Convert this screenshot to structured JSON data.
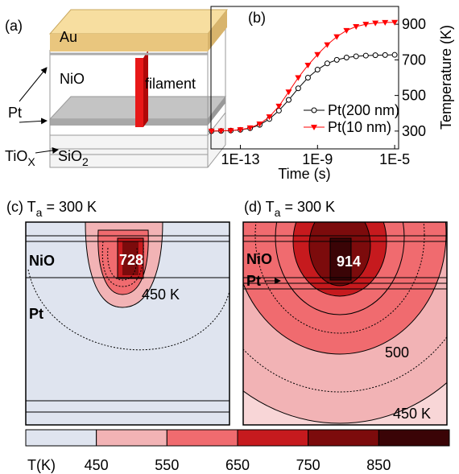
{
  "panel_a": {
    "label": "(a)",
    "au": "Au",
    "nio": "NiO",
    "pt": "Pt",
    "filament": "filament",
    "tiox": [
      "TiO",
      "X"
    ],
    "sio2": [
      "SiO",
      "2"
    ]
  },
  "chart_data": {
    "type": "line",
    "label": "(b)",
    "xlabel": "Time (s)",
    "ylabel": "Temperature (K)",
    "x": [
      3.2e-15,
      1e-14,
      3.2e-14,
      1e-13,
      3.2e-13,
      1e-12,
      3.2e-12,
      1e-11,
      3.2e-11,
      1e-10,
      3.2e-10,
      1e-09,
      3.2e-09,
      1e-08,
      3.2e-08,
      1e-07,
      3.2e-07,
      1e-06,
      3.2e-06,
      1e-05
    ],
    "series": [
      {
        "name": "Pt(200 nm)",
        "color": "#000000",
        "marker": "circle",
        "values": [
          300,
          301,
          303,
          307,
          316,
          335,
          368,
          415,
          475,
          540,
          600,
          645,
          680,
          700,
          713,
          720,
          724,
          726,
          727,
          728
        ]
      },
      {
        "name": "Pt(10 nm)",
        "color": "#ff0000",
        "marker": "triangle-down",
        "values": [
          300,
          301,
          303,
          308,
          318,
          340,
          380,
          440,
          520,
          600,
          670,
          730,
          785,
          830,
          865,
          887,
          900,
          907,
          910,
          911
        ]
      }
    ],
    "xlog": true,
    "xlim": [
      3e-15,
      1.6e-05
    ],
    "xticks": [
      {
        "value": 1e-13,
        "label": "1E-13"
      },
      {
        "value": 1e-09,
        "label": "1E-9"
      },
      {
        "value": 1e-05,
        "label": "1E-5"
      }
    ],
    "ylim": [
      200,
      1000
    ],
    "yticks": [
      300,
      500,
      700,
      900
    ],
    "yaxis_side": "right",
    "legend": "lower right"
  },
  "panel_c": {
    "label": [
      "(c) T",
      "a",
      " = 300 K"
    ],
    "nio": "NiO",
    "pt": "Pt",
    "peak": 728,
    "contour_label": "450 K"
  },
  "panel_d": {
    "label": [
      "(d) T",
      "a",
      " = 300 K"
    ],
    "nio": "NiO",
    "pt": "Pt",
    "peak": 914,
    "contour_labels": [
      "500",
      "450 K"
    ]
  },
  "colorbar": {
    "title": "T(K)",
    "ticks": [
      450,
      550,
      650,
      750,
      850
    ],
    "colors": [
      "#dfe4ef",
      "#f2b3b5",
      "#f06b6f",
      "#c61a1e",
      "#7c0b0c",
      "#3a0406"
    ]
  }
}
